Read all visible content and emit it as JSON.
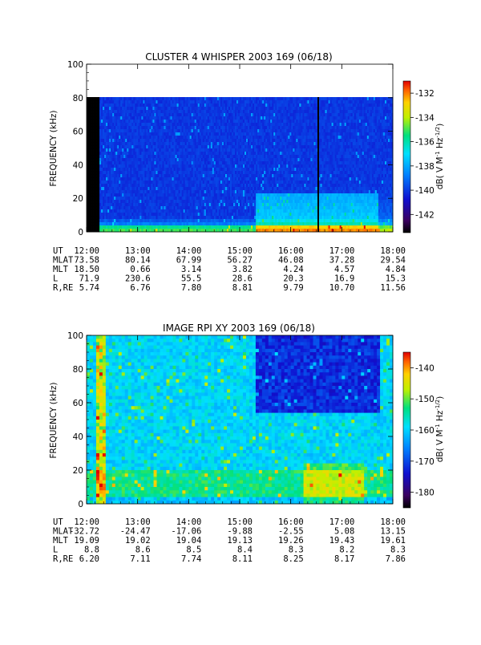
{
  "chart_data": [
    {
      "type": "heatmap",
      "title": "CLUSTER 4 WHISPER 2003 169 (06/18)",
      "ylabel": "FREQUENCY (kHz)",
      "ylim": [
        0,
        100
      ],
      "yticks": [
        0,
        20,
        40,
        60,
        80,
        100
      ],
      "data_ylim": [
        0,
        80
      ],
      "x_ticks": [
        "12:00",
        "13:00",
        "14:00",
        "15:00",
        "16:00",
        "17:00",
        "18:00"
      ],
      "colorbar": {
        "label": "dB( V M^-1 Hz^-1/2 )",
        "range": [
          -143.5,
          -131
        ],
        "ticks": [
          -132,
          -134,
          -136,
          -138,
          -140,
          -142
        ]
      },
      "data_gaps": [
        "12:00-12:20 (black)",
        "16:30 (black line)"
      ],
      "ephemeris": {
        "UT": [
          "12:00",
          "13:00",
          "14:00",
          "15:00",
          "16:00",
          "17:00",
          "18:00"
        ],
        "MLAT": [
          "73.58",
          "80.14",
          "67.99",
          "56.27",
          "46.08",
          "37.28",
          "29.54"
        ],
        "MLT": [
          "18.50",
          "0.66",
          "3.14",
          "3.82",
          "4.24",
          "4.57",
          "4.84"
        ],
        "L": [
          "71.9",
          "230.6",
          "55.5",
          "28.6",
          "20.3",
          "16.9",
          "15.3"
        ],
        "R,RE": [
          "5.74",
          "6.76",
          "7.80",
          "8.81",
          "9.79",
          "10.70",
          "11.56"
        ]
      }
    },
    {
      "type": "heatmap",
      "title": "IMAGE RPI XY 2003 169 (06/18)",
      "ylabel": "FREQUENCY (kHz)",
      "ylim": [
        0,
        100
      ],
      "yticks": [
        0,
        20,
        40,
        60,
        80,
        100
      ],
      "x_ticks": [
        "12:00",
        "13:00",
        "14:00",
        "15:00",
        "16:00",
        "17:00",
        "18:00"
      ],
      "colorbar": {
        "label": "dB( V M^-1 Hz^-1/2 )",
        "range": [
          -185,
          -135
        ],
        "ticks": [
          -140,
          -150,
          -160,
          -170,
          -180
        ]
      },
      "ephemeris": {
        "UT": [
          "12:00",
          "13:00",
          "14:00",
          "15:00",
          "16:00",
          "17:00",
          "18:00"
        ],
        "MLAT": [
          "-32.72",
          "-24.47",
          "-17.06",
          "-9.88",
          "-2.55",
          "5.08",
          "13.15"
        ],
        "MLT": [
          "19.09",
          "19.02",
          "19.04",
          "19.13",
          "19.26",
          "19.43",
          "19.61"
        ],
        "L": [
          "8.8",
          "8.6",
          "8.5",
          "8.4",
          "8.3",
          "8.2",
          "8.3"
        ],
        "R,RE": [
          "6.20",
          "7.11",
          "7.74",
          "8.11",
          "8.25",
          "8.17",
          "7.86"
        ]
      }
    }
  ]
}
